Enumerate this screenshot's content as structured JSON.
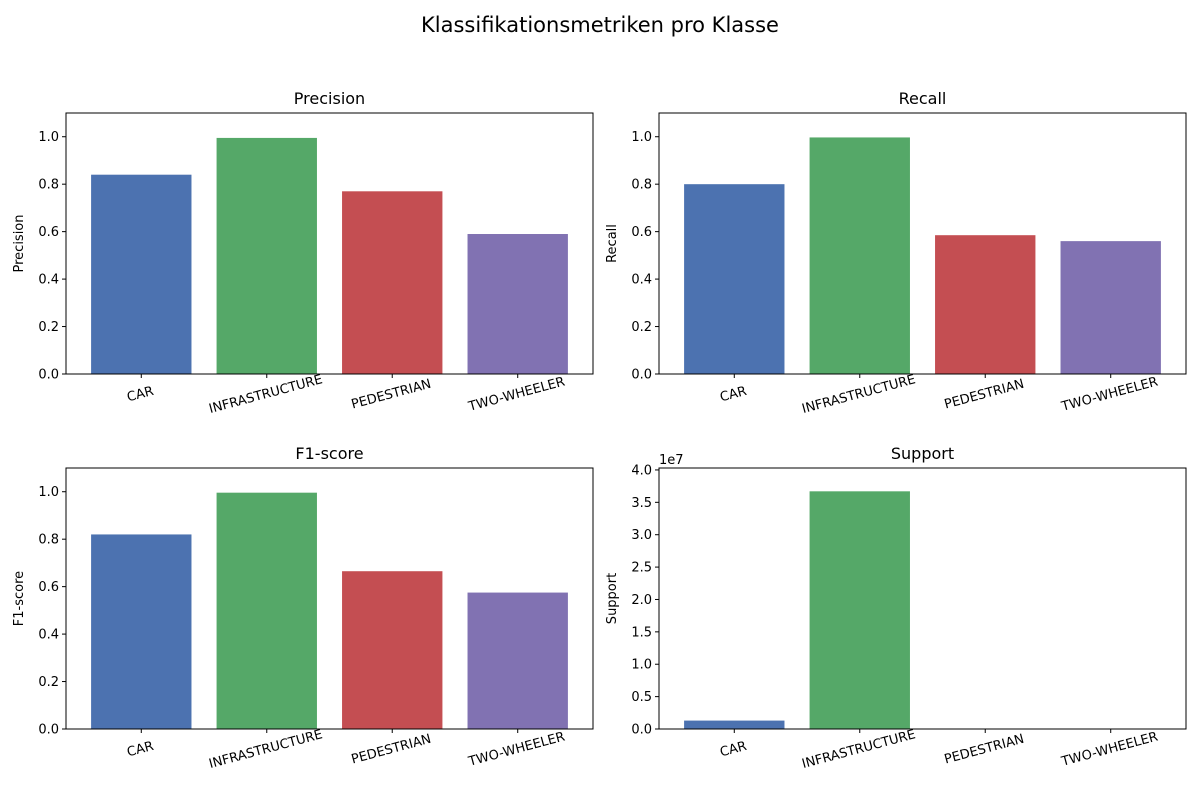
{
  "figure_title": "Klassifikationsmetriken pro Klasse",
  "colors": [
    "#4c72b0",
    "#55a868",
    "#c44e52",
    "#8172b2"
  ],
  "chart_data": [
    {
      "type": "bar",
      "title": "Precision",
      "ylabel": "Precision",
      "xlabel": "",
      "categories": [
        "CAR",
        "INFRASTRUCTURE",
        "PEDESTRIAN",
        "TWO-WHEELER"
      ],
      "values": [
        0.84,
        0.995,
        0.77,
        0.59
      ],
      "ylim": [
        0,
        1.1
      ],
      "yticks": [
        0.0,
        0.2,
        0.4,
        0.6,
        0.8,
        1.0
      ],
      "ytick_labels": [
        "0.0",
        "0.2",
        "0.4",
        "0.6",
        "0.8",
        "1.0"
      ],
      "scale_label": "",
      "grid": false
    },
    {
      "type": "bar",
      "title": "Recall",
      "ylabel": "Recall",
      "xlabel": "",
      "categories": [
        "CAR",
        "INFRASTRUCTURE",
        "PEDESTRIAN",
        "TWO-WHEELER"
      ],
      "values": [
        0.8,
        0.997,
        0.585,
        0.56
      ],
      "ylim": [
        0,
        1.1
      ],
      "yticks": [
        0.0,
        0.2,
        0.4,
        0.6,
        0.8,
        1.0
      ],
      "ytick_labels": [
        "0.0",
        "0.2",
        "0.4",
        "0.6",
        "0.8",
        "1.0"
      ],
      "scale_label": "",
      "grid": false
    },
    {
      "type": "bar",
      "title": "F1-score",
      "ylabel": "F1-score",
      "xlabel": "",
      "categories": [
        "CAR",
        "INFRASTRUCTURE",
        "PEDESTRIAN",
        "TWO-WHEELER"
      ],
      "values": [
        0.82,
        0.996,
        0.665,
        0.575
      ],
      "ylim": [
        0,
        1.1
      ],
      "yticks": [
        0.0,
        0.2,
        0.4,
        0.6,
        0.8,
        1.0
      ],
      "ytick_labels": [
        "0.0",
        "0.2",
        "0.4",
        "0.6",
        "0.8",
        "1.0"
      ],
      "scale_label": "",
      "grid": false
    },
    {
      "type": "bar",
      "title": "Support",
      "ylabel": "Support",
      "xlabel": "",
      "categories": [
        "CAR",
        "INFRASTRUCTURE",
        "PEDESTRIAN",
        "TWO-WHEELER"
      ],
      "values": [
        1300000,
        36700000,
        60000,
        40000
      ],
      "ylim": [
        0,
        40300000
      ],
      "yticks": [
        0,
        5000000,
        10000000,
        15000000,
        20000000,
        25000000,
        30000000,
        35000000,
        40000000
      ],
      "ytick_labels": [
        "0.0",
        "0.5",
        "1.0",
        "1.5",
        "2.0",
        "2.5",
        "3.0",
        "3.5",
        "4.0"
      ],
      "scale_label": "1e7",
      "grid": false
    }
  ]
}
